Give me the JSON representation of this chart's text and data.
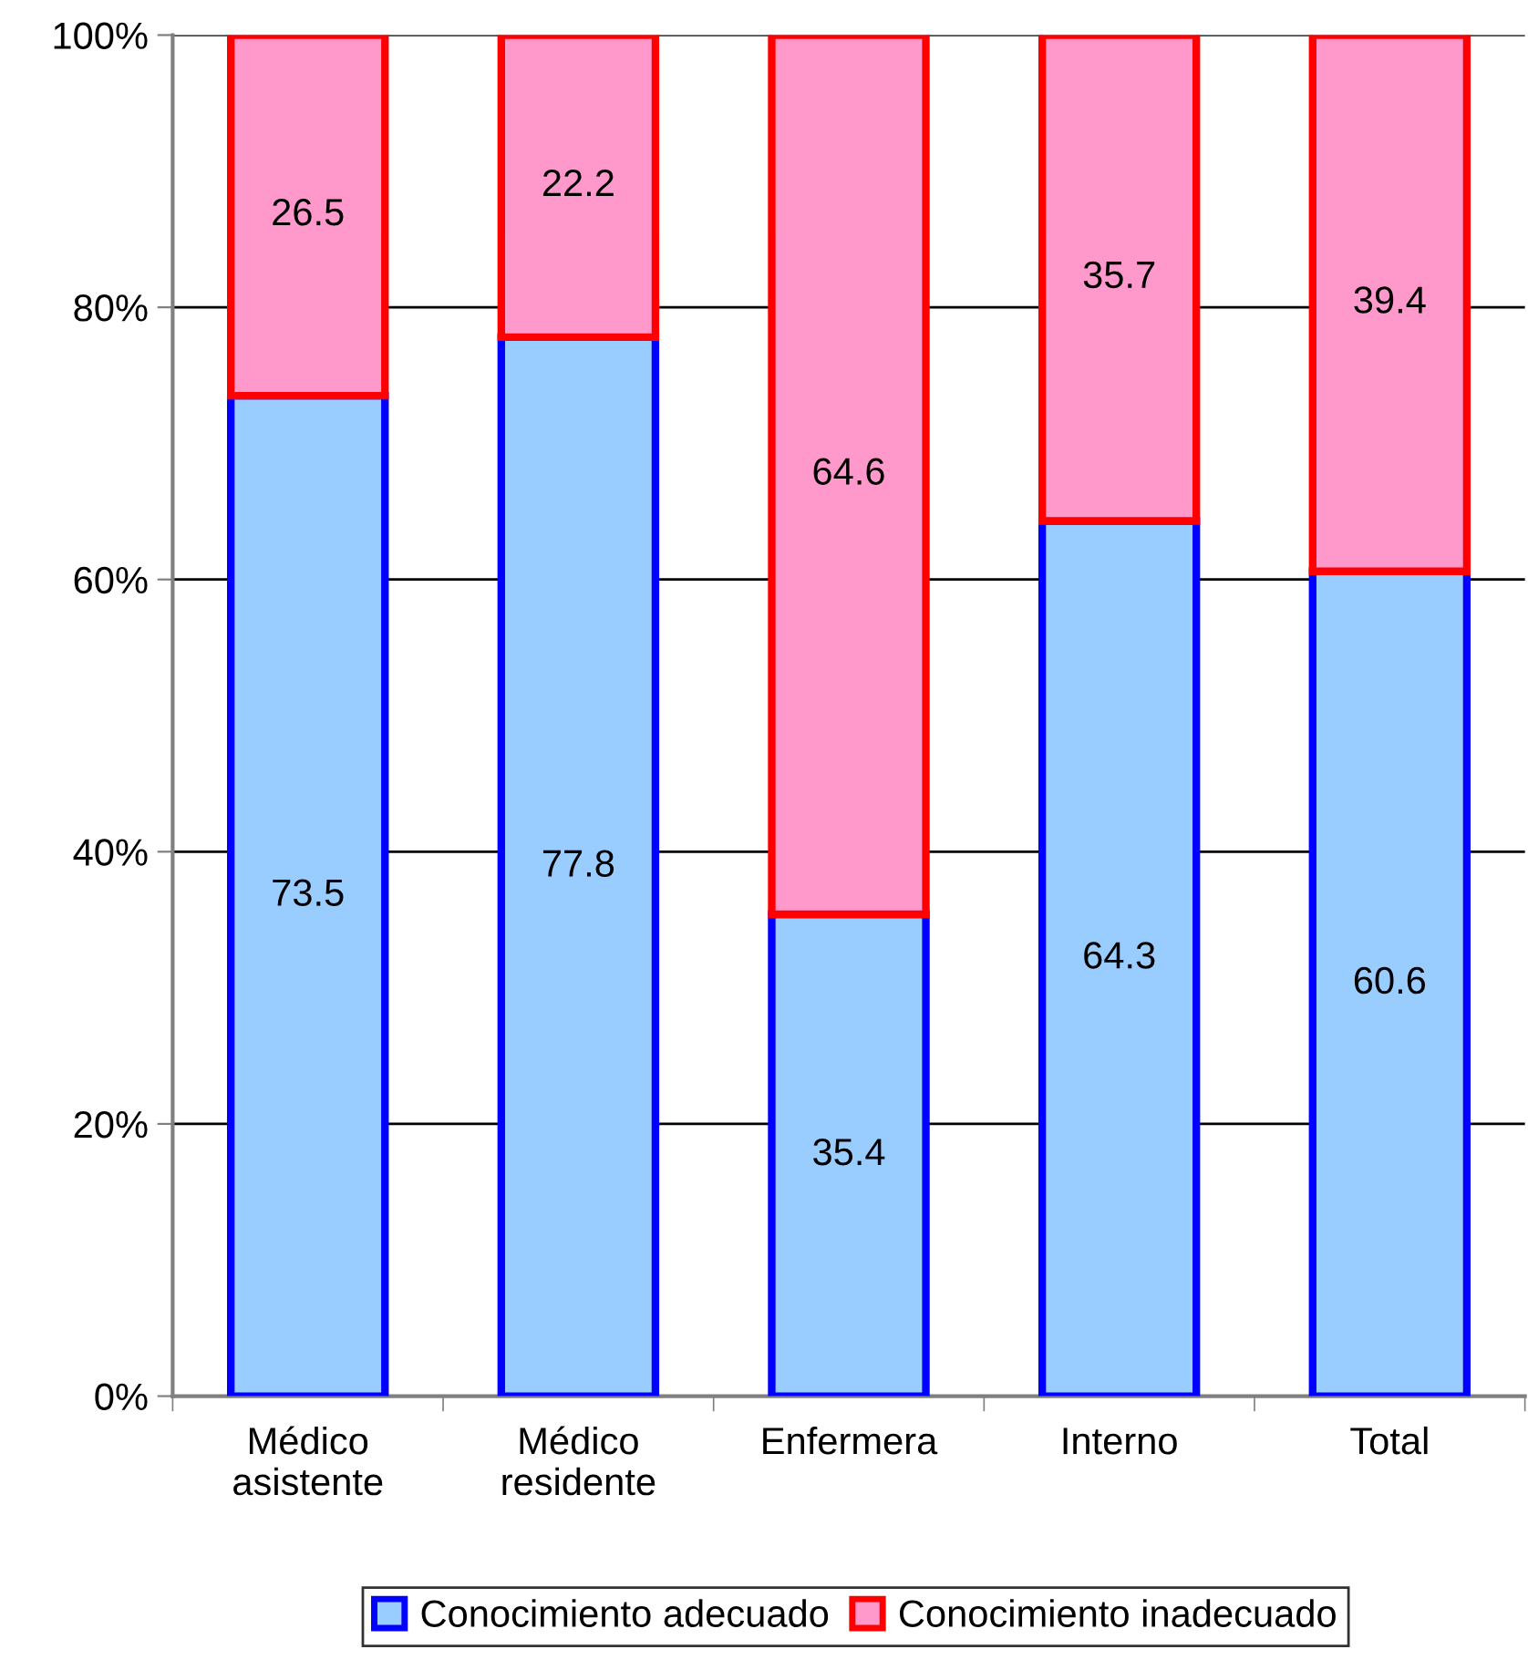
{
  "chart_data": {
    "type": "bar",
    "stacked": true,
    "categories": [
      "Médico\nasistente",
      "Médico\nresidente",
      "Enfermera",
      "Interno",
      "Total"
    ],
    "series": [
      {
        "name": "Conocimiento adecuado",
        "color": "#99ccff",
        "values": [
          73.5,
          77.8,
          35.4,
          64.3,
          60.6
        ]
      },
      {
        "name": "Conocimiento inadecuado",
        "color": "#ff99cc",
        "values": [
          26.5,
          22.2,
          64.6,
          35.7,
          39.4
        ]
      }
    ],
    "ylim": [
      0,
      100
    ],
    "yticks": [
      {
        "value": 0,
        "label": "0%"
      },
      {
        "value": 20,
        "label": "20%"
      },
      {
        "value": 40,
        "label": "40%"
      },
      {
        "value": 60,
        "label": "60%"
      },
      {
        "value": 80,
        "label": "80%"
      },
      {
        "value": 100,
        "label": "100%"
      }
    ],
    "grid": "y",
    "legend": "bottom",
    "data_labels": true
  }
}
